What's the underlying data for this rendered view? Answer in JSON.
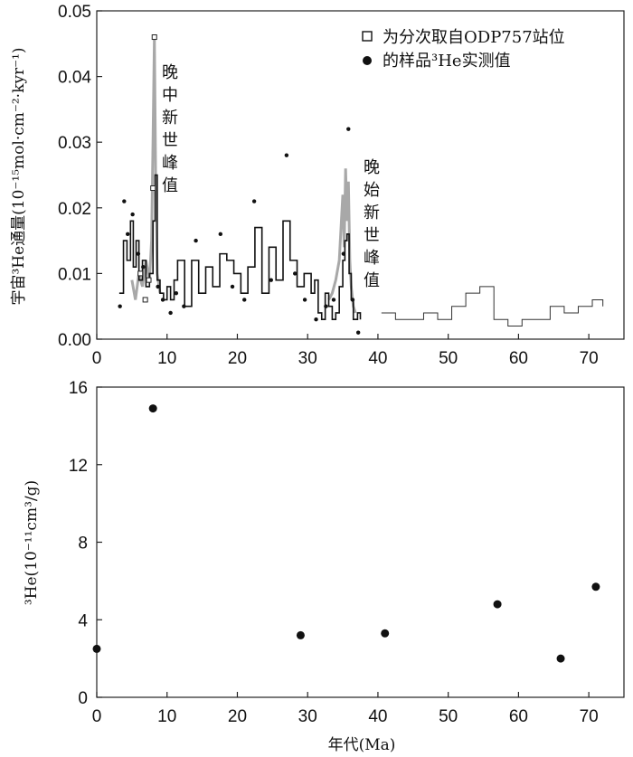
{
  "chart_data": [
    {
      "type": "line",
      "ylabel": "宇宙³He通量(10⁻¹⁵mol·cm⁻²·kyr⁻¹)",
      "xlabel": "",
      "xlim": [
        0,
        75
      ],
      "ylim": [
        0,
        0.05
      ],
      "x_ticks": [
        0,
        10,
        20,
        30,
        40,
        50,
        60,
        70
      ],
      "y_ticks": [
        0.0,
        0.01,
        0.02,
        0.03,
        0.04,
        0.05
      ],
      "y_tick_labels": [
        "0.00",
        "0.01",
        "0.02",
        "0.03",
        "0.04",
        "0.05"
      ],
      "legend": {
        "position": "top-right",
        "entries": [
          {
            "label": "为分次取自ODP757站位",
            "marker": "open-square"
          },
          {
            "label": "的样品³He实测值",
            "marker": "filled-circle"
          }
        ]
      },
      "annotations": [
        {
          "lines": [
            "晚",
            "中",
            "新",
            "世",
            "峰",
            "值"
          ],
          "x": 9.5
        },
        {
          "lines": [
            "晚",
            "始",
            "新",
            "世",
            "峰",
            "值"
          ],
          "x": 38.5
        }
      ],
      "series": [
        {
          "style": "step-black",
          "x": [
            3.2,
            3.8,
            4.3,
            4.8,
            5.2,
            5.6,
            6.0,
            6.5,
            7.0,
            7.5,
            8.0,
            8.3,
            8.6,
            9.0,
            9.5,
            10.0,
            10.5,
            11.0,
            11.5,
            12.5,
            13.5,
            14.5,
            15.5,
            16.5,
            17.5,
            18.5,
            19.5,
            20.5,
            21.5,
            22.5,
            23.5,
            24.5,
            25.5,
            26.5,
            27.5,
            28.5,
            29.5,
            30.5,
            31.0,
            31.5,
            32.0,
            32.5,
            33.0,
            33.5,
            34.0,
            34.5,
            35.0,
            35.3,
            35.6,
            35.9,
            36.2,
            36.5,
            36.8,
            37.1,
            37.5
          ],
          "y": [
            0.007,
            0.015,
            0.012,
            0.018,
            0.011,
            0.015,
            0.009,
            0.012,
            0.008,
            0.01,
            0.018,
            0.025,
            0.009,
            0.007,
            0.006,
            0.008,
            0.006,
            0.009,
            0.012,
            0.005,
            0.012,
            0.007,
            0.011,
            0.008,
            0.013,
            0.012,
            0.01,
            0.007,
            0.011,
            0.017,
            0.007,
            0.014,
            0.009,
            0.018,
            0.012,
            0.008,
            0.01,
            0.007,
            0.009,
            0.004,
            0.003,
            0.007,
            0.005,
            0.003,
            0.004,
            0.008,
            0.012,
            0.015,
            0.016,
            0.01,
            0.006,
            0.003,
            0.003,
            0.004,
            0.003
          ]
        },
        {
          "style": "gray-peaks",
          "x": [
            5.0,
            5.5,
            6.0,
            6.5,
            7.0,
            7.5,
            7.8,
            8.0,
            8.2,
            8.4,
            8.6,
            9.0,
            33.0,
            33.5,
            34.0,
            34.5,
            35.0,
            35.2,
            35.4,
            35.6,
            35.8,
            36.0,
            36.2,
            36.5,
            36.8
          ],
          "y": [
            0.009,
            0.006,
            0.01,
            0.008,
            0.012,
            0.009,
            0.015,
            0.03,
            0.046,
            0.022,
            0.01,
            0.007,
            0.006,
            0.007,
            0.009,
            0.012,
            0.022,
            0.014,
            0.026,
            0.018,
            0.024,
            0.012,
            0.008,
            0.005,
            0.004
          ]
        },
        {
          "style": "step-thin",
          "x": [
            40.5,
            42.5,
            44.5,
            46.5,
            48.5,
            50.5,
            52.5,
            54.5,
            56.5,
            58.5,
            60.5,
            62.5,
            64.5,
            66.5,
            68.5,
            70.5,
            72.0
          ],
          "y": [
            0.004,
            0.003,
            0.003,
            0.004,
            0.003,
            0.005,
            0.007,
            0.008,
            0.003,
            0.002,
            0.003,
            0.003,
            0.005,
            0.004,
            0.005,
            0.006,
            0.005
          ]
        },
        {
          "style": "scatter-filled",
          "x": [
            3.3,
            3.9,
            4.4,
            5.1,
            5.9,
            6.6,
            7.2,
            8.7,
            9.4,
            10.5,
            11.3,
            12.4,
            14.1,
            17.6,
            19.3,
            21.0,
            22.4,
            24.8,
            27.0,
            28.2,
            29.6,
            31.2,
            32.6,
            33.7,
            35.1,
            35.8,
            36.4,
            37.2
          ],
          "y": [
            0.005,
            0.021,
            0.016,
            0.019,
            0.013,
            0.011,
            0.009,
            0.008,
            0.006,
            0.004,
            0.007,
            0.005,
            0.015,
            0.016,
            0.008,
            0.006,
            0.021,
            0.009,
            0.028,
            0.01,
            0.006,
            0.003,
            0.005,
            0.006,
            0.013,
            0.032,
            0.006,
            0.001
          ]
        },
        {
          "style": "scatter-open",
          "x": [
            6.2,
            6.9,
            7.4,
            8.0,
            8.2
          ],
          "y": [
            0.01,
            0.006,
            0.009,
            0.023,
            0.046
          ]
        }
      ]
    },
    {
      "type": "scatter",
      "xlabel": "年代(Ma)",
      "ylabel": "³He(10⁻¹¹cm³/g)",
      "xlim": [
        0,
        75
      ],
      "ylim": [
        0,
        16
      ],
      "x_ticks": [
        0,
        10,
        20,
        30,
        40,
        50,
        60,
        70
      ],
      "y_ticks": [
        0,
        4,
        8,
        12,
        16
      ],
      "x": [
        0,
        8,
        29,
        41,
        57,
        66,
        71
      ],
      "y": [
        2.5,
        14.9,
        3.2,
        3.3,
        4.8,
        2.0,
        5.7
      ]
    }
  ]
}
